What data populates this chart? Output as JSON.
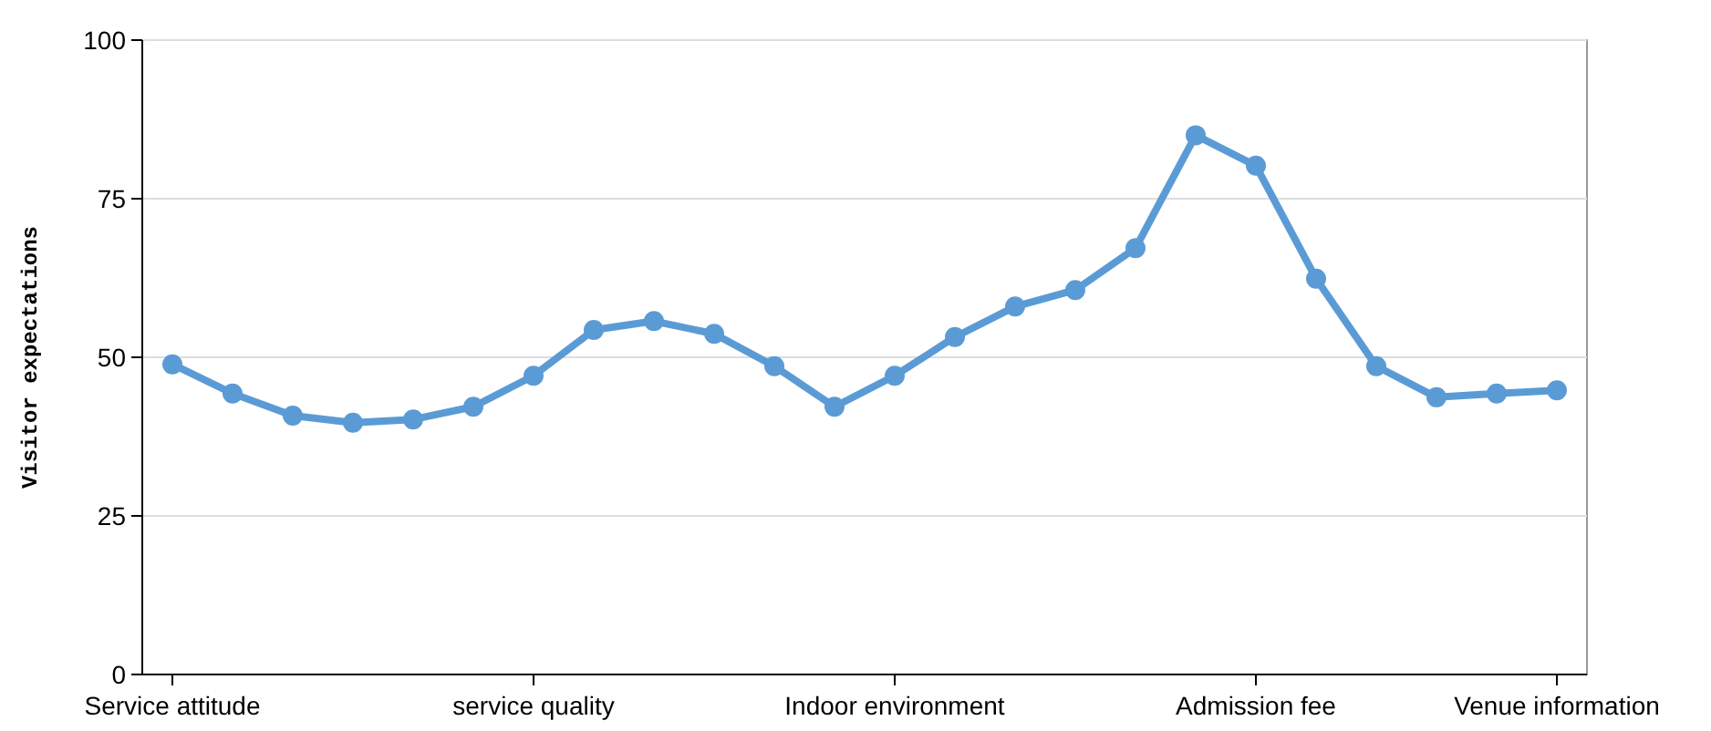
{
  "chart_data": {
    "type": "line",
    "ylabel": "Visitor expectations",
    "categories": [
      "Service attitude",
      null,
      null,
      null,
      null,
      null,
      "service quality",
      null,
      null,
      null,
      null,
      null,
      "Indoor environment",
      null,
      null,
      null,
      null,
      null,
      "Admission fee",
      null,
      null,
      null,
      null,
      "Venue information"
    ],
    "series": [
      {
        "color": "#5b9bd5",
        "values": [
          48.9,
          44.3,
          40.8,
          39.7,
          40.2,
          42.2,
          47.1,
          54.3,
          55.7,
          53.7,
          48.6,
          42.2,
          47.1,
          53.2,
          58,
          60.6,
          67.2,
          85,
          80.2,
          62.4,
          48.6,
          43.7,
          44.3,
          44.8
        ]
      }
    ],
    "ylim": [
      0,
      100
    ],
    "yticks": [
      0,
      25,
      50,
      75,
      100
    ],
    "grid": "y",
    "marker": "circle",
    "line_style": "solid"
  }
}
